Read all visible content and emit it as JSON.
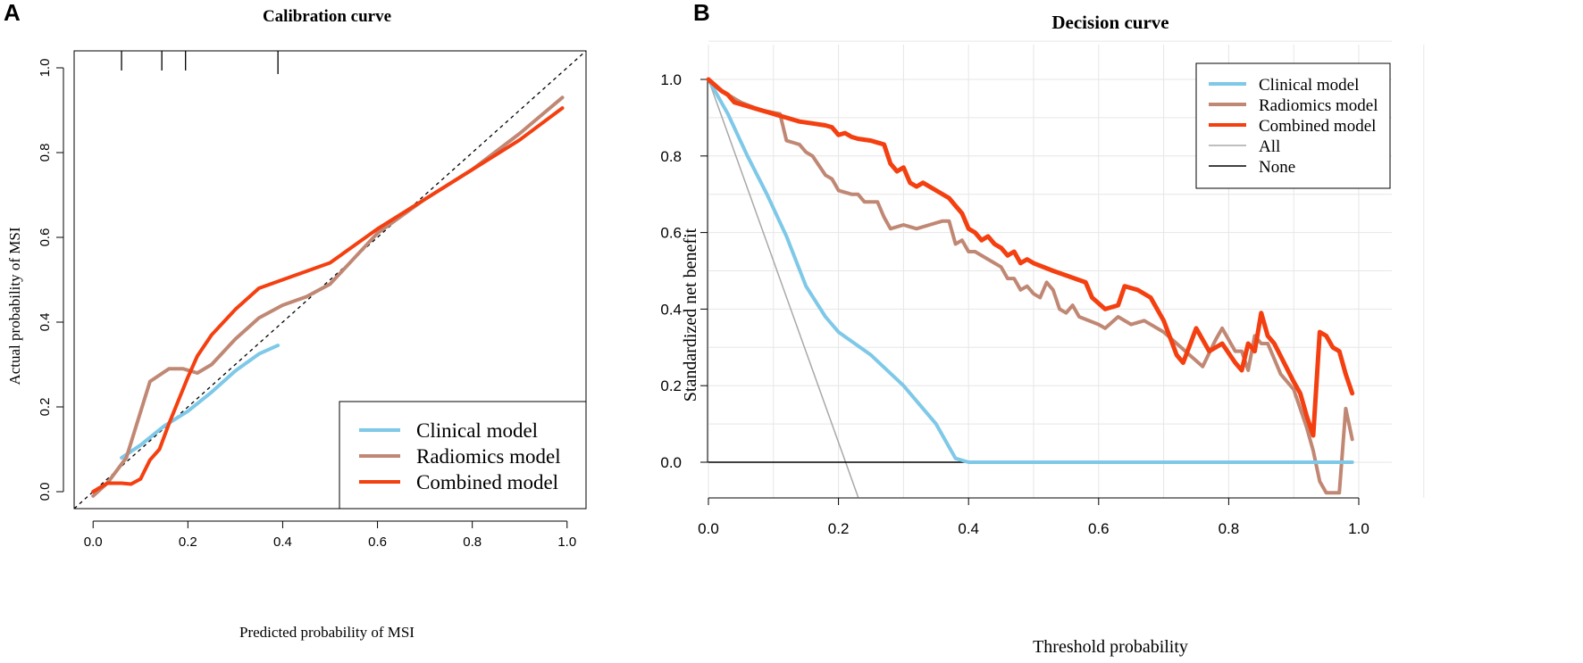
{
  "colors": {
    "clinical": "#7ec8e8",
    "radiomics": "#c08874",
    "combined": "#f43f10",
    "all": "#a8a8a8",
    "none": "#000000",
    "grid": "#e6e6e6"
  },
  "chart_data": [
    {
      "panel": "A",
      "type": "line",
      "title": "Calibration curve",
      "xlabel": "Predicted probability of MSI",
      "ylabel": "Actual probability of MSI",
      "xlim": [
        -0.04,
        1.04
      ],
      "ylim": [
        -0.04,
        1.04
      ],
      "xticks": [
        "0.0",
        "0.2",
        "0.4",
        "0.6",
        "0.8",
        "1.0"
      ],
      "yticks": [
        "0.0",
        "0.2",
        "0.4",
        "0.6",
        "0.8",
        "1.0"
      ],
      "legend_position": "bottom-right",
      "rug_marks": [
        0.06,
        0.145,
        0.195,
        0.39
      ],
      "reference_line": "diagonal (dashed)",
      "series": [
        {
          "name": "Clinical model",
          "color_key": "clinical",
          "points": [
            [
              0.06,
              0.08
            ],
            [
              0.1,
              0.11
            ],
            [
              0.15,
              0.155
            ],
            [
              0.2,
              0.19
            ],
            [
              0.25,
              0.235
            ],
            [
              0.3,
              0.285
            ],
            [
              0.35,
              0.325
            ],
            [
              0.39,
              0.345
            ]
          ]
        },
        {
          "name": "Radiomics model",
          "color_key": "radiomics",
          "points": [
            [
              0.0,
              -0.01
            ],
            [
              0.03,
              0.02
            ],
            [
              0.07,
              0.08
            ],
            [
              0.12,
              0.26
            ],
            [
              0.16,
              0.29
            ],
            [
              0.19,
              0.29
            ],
            [
              0.22,
              0.28
            ],
            [
              0.25,
              0.3
            ],
            [
              0.3,
              0.36
            ],
            [
              0.35,
              0.41
            ],
            [
              0.4,
              0.44
            ],
            [
              0.45,
              0.46
            ],
            [
              0.5,
              0.49
            ],
            [
              0.55,
              0.55
            ],
            [
              0.6,
              0.61
            ],
            [
              0.7,
              0.69
            ],
            [
              0.8,
              0.76
            ],
            [
              0.9,
              0.845
            ],
            [
              0.99,
              0.93
            ]
          ]
        },
        {
          "name": "Combined model",
          "color_key": "combined",
          "points": [
            [
              0.0,
              0.0
            ],
            [
              0.03,
              0.02
            ],
            [
              0.06,
              0.02
            ],
            [
              0.08,
              0.018
            ],
            [
              0.1,
              0.03
            ],
            [
              0.12,
              0.075
            ],
            [
              0.14,
              0.1
            ],
            [
              0.16,
              0.16
            ],
            [
              0.18,
              0.215
            ],
            [
              0.2,
              0.27
            ],
            [
              0.22,
              0.32
            ],
            [
              0.25,
              0.37
            ],
            [
              0.3,
              0.43
            ],
            [
              0.35,
              0.48
            ],
            [
              0.4,
              0.5
            ],
            [
              0.45,
              0.52
            ],
            [
              0.5,
              0.54
            ],
            [
              0.55,
              0.58
            ],
            [
              0.6,
              0.62
            ],
            [
              0.7,
              0.69
            ],
            [
              0.8,
              0.76
            ],
            [
              0.9,
              0.83
            ],
            [
              0.99,
              0.905
            ]
          ]
        }
      ]
    },
    {
      "panel": "B",
      "type": "line",
      "title": "Decision curve",
      "xlabel": "Threshold probability",
      "ylabel": "Standardized net benefit",
      "xlim": [
        0.0,
        1.0
      ],
      "ylim": [
        -0.09,
        1.0
      ],
      "xticks": [
        "0.0",
        "0.2",
        "0.4",
        "0.6",
        "0.8",
        "1.0"
      ],
      "yticks": [
        "0.0",
        "0.2",
        "0.4",
        "0.6",
        "0.8",
        "1.0"
      ],
      "grid": true,
      "legend_position": "top-right",
      "series": [
        {
          "name": "Clinical model",
          "color_key": "clinical",
          "width": 4,
          "points": [
            [
              0.0,
              1.0
            ],
            [
              0.03,
              0.91
            ],
            [
              0.06,
              0.8
            ],
            [
              0.09,
              0.7
            ],
            [
              0.12,
              0.59
            ],
            [
              0.15,
              0.46
            ],
            [
              0.18,
              0.38
            ],
            [
              0.2,
              0.34
            ],
            [
              0.25,
              0.28
            ],
            [
              0.3,
              0.2
            ],
            [
              0.35,
              0.1
            ],
            [
              0.38,
              0.01
            ],
            [
              0.4,
              0.0
            ],
            [
              0.99,
              0.0
            ]
          ]
        },
        {
          "name": "Radiomics model",
          "color_key": "radiomics",
          "width": 4,
          "points": [
            [
              0.0,
              1.0
            ],
            [
              0.02,
              0.97
            ],
            [
              0.05,
              0.94
            ],
            [
              0.08,
              0.92
            ],
            [
              0.11,
              0.91
            ],
            [
              0.12,
              0.84
            ],
            [
              0.14,
              0.83
            ],
            [
              0.15,
              0.81
            ],
            [
              0.16,
              0.8
            ],
            [
              0.18,
              0.75
            ],
            [
              0.19,
              0.74
            ],
            [
              0.2,
              0.71
            ],
            [
              0.22,
              0.7
            ],
            [
              0.23,
              0.7
            ],
            [
              0.24,
              0.68
            ],
            [
              0.26,
              0.68
            ],
            [
              0.27,
              0.64
            ],
            [
              0.28,
              0.61
            ],
            [
              0.3,
              0.62
            ],
            [
              0.32,
              0.61
            ],
            [
              0.34,
              0.62
            ],
            [
              0.36,
              0.63
            ],
            [
              0.37,
              0.63
            ],
            [
              0.38,
              0.57
            ],
            [
              0.39,
              0.58
            ],
            [
              0.4,
              0.55
            ],
            [
              0.41,
              0.55
            ],
            [
              0.43,
              0.53
            ],
            [
              0.44,
              0.52
            ],
            [
              0.45,
              0.51
            ],
            [
              0.46,
              0.48
            ],
            [
              0.47,
              0.48
            ],
            [
              0.48,
              0.45
            ],
            [
              0.49,
              0.46
            ],
            [
              0.5,
              0.44
            ],
            [
              0.51,
              0.43
            ],
            [
              0.52,
              0.47
            ],
            [
              0.53,
              0.45
            ],
            [
              0.54,
              0.4
            ],
            [
              0.55,
              0.39
            ],
            [
              0.56,
              0.41
            ],
            [
              0.57,
              0.38
            ],
            [
              0.6,
              0.36
            ],
            [
              0.61,
              0.35
            ],
            [
              0.63,
              0.38
            ],
            [
              0.65,
              0.36
            ],
            [
              0.67,
              0.37
            ],
            [
              0.7,
              0.34
            ],
            [
              0.72,
              0.31
            ],
            [
              0.74,
              0.28
            ],
            [
              0.76,
              0.25
            ],
            [
              0.78,
              0.32
            ],
            [
              0.79,
              0.35
            ],
            [
              0.81,
              0.29
            ],
            [
              0.82,
              0.29
            ],
            [
              0.83,
              0.24
            ],
            [
              0.84,
              0.33
            ],
            [
              0.85,
              0.31
            ],
            [
              0.86,
              0.31
            ],
            [
              0.87,
              0.27
            ],
            [
              0.88,
              0.23
            ],
            [
              0.9,
              0.19
            ],
            [
              0.91,
              0.14
            ],
            [
              0.92,
              0.09
            ],
            [
              0.93,
              0.03
            ],
            [
              0.94,
              -0.05
            ],
            [
              0.95,
              -0.08
            ],
            [
              0.97,
              -0.08
            ],
            [
              0.98,
              0.14
            ],
            [
              0.99,
              0.06
            ]
          ]
        },
        {
          "name": "Combined model",
          "color_key": "combined",
          "width": 5,
          "points": [
            [
              0.0,
              1.0
            ],
            [
              0.02,
              0.97
            ],
            [
              0.03,
              0.96
            ],
            [
              0.04,
              0.94
            ],
            [
              0.06,
              0.93
            ],
            [
              0.08,
              0.92
            ],
            [
              0.1,
              0.91
            ],
            [
              0.12,
              0.9
            ],
            [
              0.14,
              0.89
            ],
            [
              0.16,
              0.885
            ],
            [
              0.18,
              0.88
            ],
            [
              0.19,
              0.875
            ],
            [
              0.2,
              0.855
            ],
            [
              0.21,
              0.86
            ],
            [
              0.22,
              0.85
            ],
            [
              0.23,
              0.845
            ],
            [
              0.25,
              0.84
            ],
            [
              0.26,
              0.835
            ],
            [
              0.27,
              0.83
            ],
            [
              0.28,
              0.78
            ],
            [
              0.29,
              0.76
            ],
            [
              0.3,
              0.77
            ],
            [
              0.31,
              0.73
            ],
            [
              0.32,
              0.72
            ],
            [
              0.33,
              0.73
            ],
            [
              0.35,
              0.71
            ],
            [
              0.37,
              0.69
            ],
            [
              0.38,
              0.67
            ],
            [
              0.39,
              0.65
            ],
            [
              0.4,
              0.61
            ],
            [
              0.41,
              0.6
            ],
            [
              0.42,
              0.58
            ],
            [
              0.43,
              0.59
            ],
            [
              0.44,
              0.57
            ],
            [
              0.45,
              0.56
            ],
            [
              0.46,
              0.54
            ],
            [
              0.47,
              0.55
            ],
            [
              0.48,
              0.52
            ],
            [
              0.49,
              0.53
            ],
            [
              0.5,
              0.52
            ],
            [
              0.53,
              0.5
            ],
            [
              0.58,
              0.47
            ],
            [
              0.59,
              0.43
            ],
            [
              0.61,
              0.4
            ],
            [
              0.63,
              0.41
            ],
            [
              0.64,
              0.46
            ],
            [
              0.66,
              0.45
            ],
            [
              0.68,
              0.43
            ],
            [
              0.7,
              0.37
            ],
            [
              0.72,
              0.28
            ],
            [
              0.73,
              0.26
            ],
            [
              0.75,
              0.35
            ],
            [
              0.77,
              0.29
            ],
            [
              0.79,
              0.31
            ],
            [
              0.81,
              0.26
            ],
            [
              0.82,
              0.24
            ],
            [
              0.83,
              0.31
            ],
            [
              0.84,
              0.29
            ],
            [
              0.85,
              0.39
            ],
            [
              0.86,
              0.33
            ],
            [
              0.87,
              0.31
            ],
            [
              0.9,
              0.21
            ],
            [
              0.91,
              0.18
            ],
            [
              0.92,
              0.12
            ],
            [
              0.93,
              0.07
            ],
            [
              0.94,
              0.34
            ],
            [
              0.95,
              0.33
            ],
            [
              0.96,
              0.3
            ],
            [
              0.97,
              0.29
            ],
            [
              0.98,
              0.23
            ],
            [
              0.99,
              0.18
            ]
          ]
        },
        {
          "name": "All",
          "color_key": "all",
          "width": 1.5,
          "points": [
            [
              0.0,
              1.0
            ],
            [
              0.23,
              -0.09
            ]
          ]
        },
        {
          "name": "None",
          "color_key": "none",
          "width": 1.5,
          "points": [
            [
              0.0,
              0.0
            ],
            [
              0.99,
              0.0
            ]
          ]
        }
      ]
    }
  ]
}
